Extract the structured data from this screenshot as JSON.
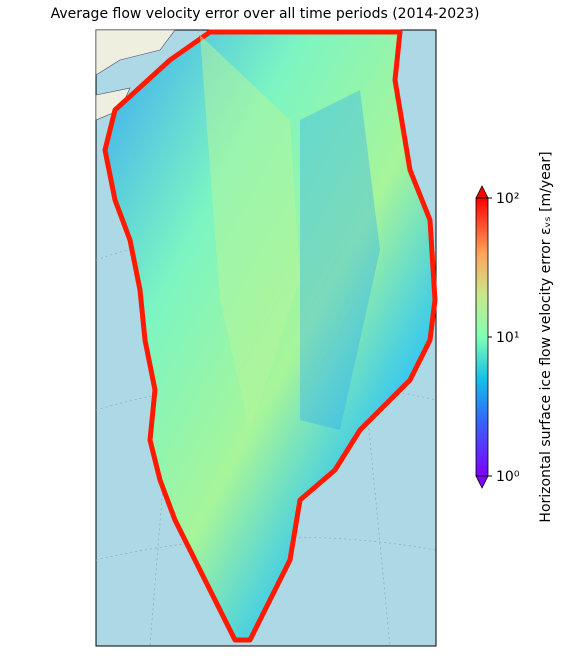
{
  "title": "Average flow velocity error over all time periods (2014-2023)",
  "colorbar": {
    "label": "Horizontal surface ice flow velocity error εᵥₛ [m/year]",
    "scale": "log",
    "lim": [
      1,
      100
    ],
    "colormap": "rainbow",
    "extend": "both",
    "ticks": [
      {
        "value": 1,
        "label": "10⁰"
      },
      {
        "value": 10,
        "label": "10¹"
      },
      {
        "value": 100,
        "label": "10²"
      }
    ]
  }
}
